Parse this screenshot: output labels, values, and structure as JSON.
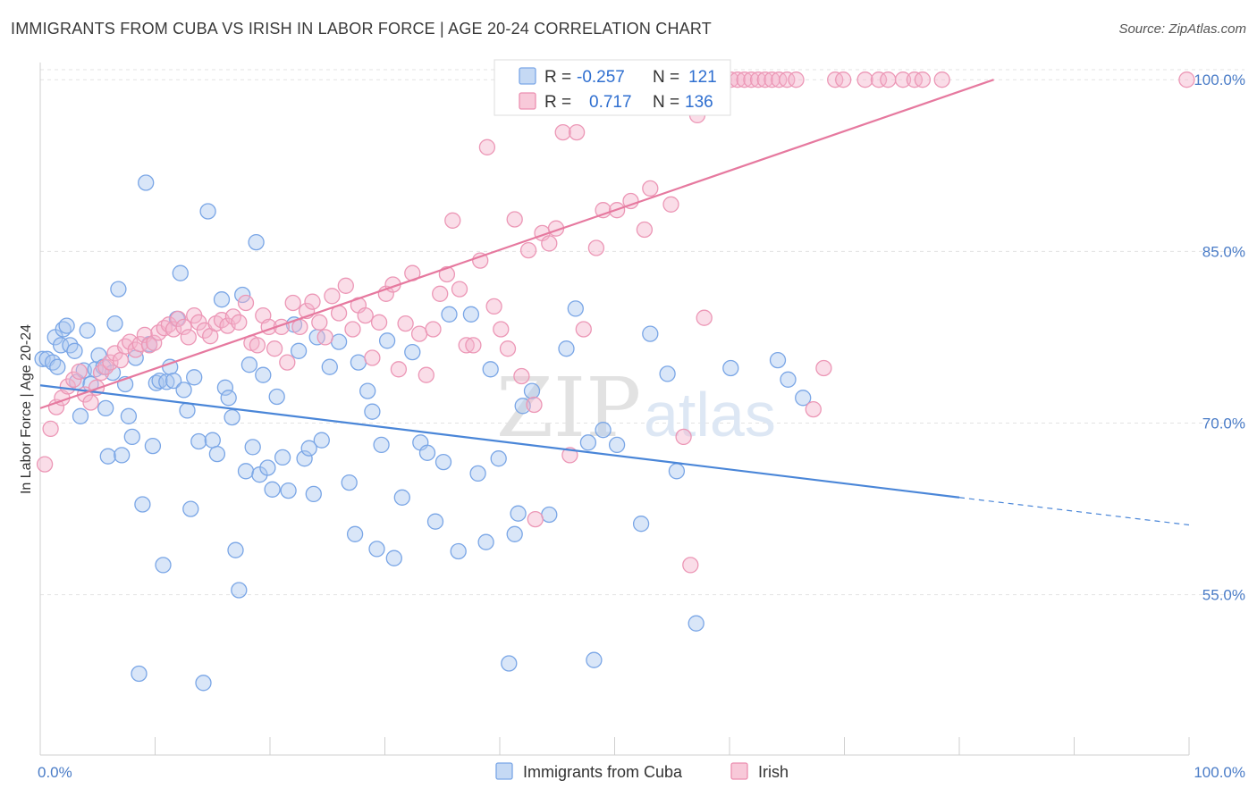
{
  "header": {
    "title": "IMMIGRANTS FROM CUBA VS IRISH IN LABOR FORCE | AGE 20-24 CORRELATION CHART",
    "source": "Source: ZipAtlas.com"
  },
  "watermark": {
    "zip": "ZIP",
    "atlas": "atlas"
  },
  "legend": {
    "r_label": "R =",
    "n_label": "N =",
    "items": [
      {
        "name": "Immigrants from Cuba",
        "r": "-0.257",
        "n": "121",
        "color": "#7aa6e6",
        "fill": "#c5d9f4"
      },
      {
        "name": "Irish",
        "r": "0.717",
        "n": "136",
        "color": "#ec8fb0",
        "fill": "#f8c9d9"
      }
    ]
  },
  "chart_data": {
    "type": "scatter",
    "title": "IMMIGRANTS FROM CUBA VS IRISH IN LABOR FORCE | AGE 20-24 CORRELATION CHART",
    "xlabel": "",
    "ylabel": "In Labor Force | Age 20-24",
    "xlim": [
      0,
      100
    ],
    "ylim": [
      41,
      101.5
    ],
    "x_tick_labels": [
      "0.0%",
      "100.0%"
    ],
    "y_ticks": [
      55,
      70,
      85,
      100
    ],
    "y_tick_labels": [
      "55.0%",
      "70.0%",
      "85.0%",
      "100.0%"
    ],
    "grid": true,
    "legend_position": "top-center",
    "series": [
      {
        "name": "Immigrants from Cuba",
        "color": "#4a86d8",
        "trend": {
          "x": [
            0,
            80
          ],
          "y": [
            73.3,
            63.5
          ],
          "dashed_to": [
            100,
            61.1
          ]
        },
        "points": [
          [
            0.2,
            75.6
          ],
          [
            0.6,
            75.6
          ],
          [
            1.1,
            75.3
          ],
          [
            1.3,
            77.5
          ],
          [
            1.5,
            74.9
          ],
          [
            1.8,
            76.8
          ],
          [
            2,
            78.2
          ],
          [
            2.3,
            78.5
          ],
          [
            2.6,
            76.8
          ],
          [
            3,
            76.3
          ],
          [
            3.2,
            73.6
          ],
          [
            3.5,
            70.6
          ],
          [
            3.8,
            74.6
          ],
          [
            4.1,
            78.1
          ],
          [
            4.4,
            73.4
          ],
          [
            4.8,
            74.7
          ],
          [
            5.1,
            75.9
          ],
          [
            5.5,
            74.9
          ],
          [
            5.7,
            71.3
          ],
          [
            5.9,
            67.1
          ],
          [
            6.3,
            74.4
          ],
          [
            6.5,
            78.7
          ],
          [
            6.8,
            81.7
          ],
          [
            7.1,
            67.2
          ],
          [
            7.4,
            73.4
          ],
          [
            7.7,
            70.6
          ],
          [
            8,
            68.8
          ],
          [
            8.3,
            75.7
          ],
          [
            8.6,
            48.1
          ],
          [
            8.9,
            62.9
          ],
          [
            9.2,
            91
          ],
          [
            9.5,
            76.9
          ],
          [
            9.8,
            68
          ],
          [
            10.1,
            73.5
          ],
          [
            10.4,
            73.7
          ],
          [
            10.7,
            57.6
          ],
          [
            11,
            73.6
          ],
          [
            11.3,
            74.9
          ],
          [
            11.6,
            73.7
          ],
          [
            11.9,
            79.1
          ],
          [
            12.2,
            83.1
          ],
          [
            12.5,
            72.9
          ],
          [
            12.8,
            71.1
          ],
          [
            13.1,
            62.5
          ],
          [
            13.4,
            74
          ],
          [
            13.8,
            68.4
          ],
          [
            14.2,
            47.3
          ],
          [
            14.6,
            88.5
          ],
          [
            15,
            68.5
          ],
          [
            15.4,
            67.3
          ],
          [
            15.8,
            80.8
          ],
          [
            16.1,
            73.1
          ],
          [
            16.4,
            72.2
          ],
          [
            16.7,
            70.5
          ],
          [
            17,
            58.9
          ],
          [
            17.3,
            55.4
          ],
          [
            17.6,
            81.2
          ],
          [
            17.9,
            65.8
          ],
          [
            18.2,
            75.1
          ],
          [
            18.5,
            67.9
          ],
          [
            18.8,
            85.8
          ],
          [
            19.1,
            65.5
          ],
          [
            19.4,
            74.2
          ],
          [
            19.8,
            66.1
          ],
          [
            20.2,
            64.2
          ],
          [
            20.6,
            72.3
          ],
          [
            21.1,
            67
          ],
          [
            21.6,
            64.1
          ],
          [
            22.1,
            78.6
          ],
          [
            22.5,
            76.3
          ],
          [
            23,
            66.9
          ],
          [
            23.4,
            67.8
          ],
          [
            23.8,
            63.8
          ],
          [
            24.1,
            77.5
          ],
          [
            24.5,
            68.5
          ],
          [
            25.2,
            74.9
          ],
          [
            26,
            77.1
          ],
          [
            26.9,
            64.8
          ],
          [
            27.4,
            60.3
          ],
          [
            27.7,
            75.3
          ],
          [
            28.5,
            72.8
          ],
          [
            28.9,
            71
          ],
          [
            29.3,
            59
          ],
          [
            29.7,
            68.1
          ],
          [
            30.2,
            77.2
          ],
          [
            30.8,
            58.2
          ],
          [
            31.5,
            63.5
          ],
          [
            32.4,
            76.2
          ],
          [
            33.1,
            68.3
          ],
          [
            33.7,
            67.4
          ],
          [
            34.4,
            61.4
          ],
          [
            35.1,
            66.6
          ],
          [
            35.6,
            79.5
          ],
          [
            36.4,
            58.8
          ],
          [
            37.5,
            79.5
          ],
          [
            38.1,
            65.6
          ],
          [
            38.8,
            59.6
          ],
          [
            39.2,
            74.7
          ],
          [
            39.9,
            66.9
          ],
          [
            40.8,
            49
          ],
          [
            41.3,
            60.3
          ],
          [
            41.6,
            62.1
          ],
          [
            42,
            71.5
          ],
          [
            42.8,
            72.8
          ],
          [
            44.3,
            62
          ],
          [
            45.8,
            76.5
          ],
          [
            46.6,
            80
          ],
          [
            47.7,
            68.3
          ],
          [
            48.2,
            49.3
          ],
          [
            49,
            69.4
          ],
          [
            50.2,
            68.1
          ],
          [
            52.3,
            61.2
          ],
          [
            53.1,
            77.8
          ],
          [
            54.6,
            74.3
          ],
          [
            55.4,
            65.8
          ],
          [
            57.1,
            52.5
          ],
          [
            60.1,
            74.8
          ],
          [
            64.2,
            75.5
          ],
          [
            65.1,
            73.8
          ],
          [
            66.4,
            72.2
          ]
        ]
      },
      {
        "name": "Irish",
        "color": "#e6799f",
        "trend": {
          "x": [
            0,
            83
          ],
          "y": [
            71.3,
            100
          ]
        },
        "points": [
          [
            0.4,
            66.4
          ],
          [
            0.9,
            69.5
          ],
          [
            1.4,
            71.4
          ],
          [
            1.9,
            72.2
          ],
          [
            2.4,
            73.2
          ],
          [
            2.9,
            73.8
          ],
          [
            3.4,
            74.5
          ],
          [
            3.9,
            72.5
          ],
          [
            4.4,
            71.8
          ],
          [
            4.9,
            73.1
          ],
          [
            5.3,
            74.4
          ],
          [
            5.7,
            74.9
          ],
          [
            6.1,
            75.3
          ],
          [
            6.5,
            76.1
          ],
          [
            7,
            75.5
          ],
          [
            7.4,
            76.7
          ],
          [
            7.8,
            77.1
          ],
          [
            8.3,
            76.4
          ],
          [
            8.7,
            76.9
          ],
          [
            9.1,
            77.7
          ],
          [
            9.5,
            76.8
          ],
          [
            9.9,
            77
          ],
          [
            10.3,
            77.9
          ],
          [
            10.8,
            78.3
          ],
          [
            11.2,
            78.6
          ],
          [
            11.6,
            78.2
          ],
          [
            12,
            79.1
          ],
          [
            12.5,
            78.4
          ],
          [
            12.9,
            77.5
          ],
          [
            13.4,
            79.4
          ],
          [
            13.8,
            78.8
          ],
          [
            14.3,
            78.1
          ],
          [
            14.8,
            77.6
          ],
          [
            15.3,
            78.7
          ],
          [
            15.8,
            79
          ],
          [
            16.3,
            78.5
          ],
          [
            16.8,
            79.3
          ],
          [
            17.3,
            78.8
          ],
          [
            17.9,
            80.5
          ],
          [
            18.4,
            77
          ],
          [
            18.9,
            76.8
          ],
          [
            19.4,
            79.4
          ],
          [
            19.9,
            78.4
          ],
          [
            20.4,
            76.5
          ],
          [
            21,
            78.4
          ],
          [
            21.5,
            75.3
          ],
          [
            22,
            80.5
          ],
          [
            22.6,
            78.4
          ],
          [
            23.2,
            79.8
          ],
          [
            23.7,
            80.6
          ],
          [
            24.3,
            78.8
          ],
          [
            24.8,
            77.5
          ],
          [
            25.4,
            81.1
          ],
          [
            26,
            79.6
          ],
          [
            26.6,
            82
          ],
          [
            27.2,
            78.2
          ],
          [
            27.7,
            80.3
          ],
          [
            28.3,
            79.4
          ],
          [
            28.9,
            75.7
          ],
          [
            29.5,
            78.8
          ],
          [
            30.1,
            81.3
          ],
          [
            30.7,
            82.1
          ],
          [
            31.2,
            74.7
          ],
          [
            31.8,
            78.7
          ],
          [
            32.4,
            83.1
          ],
          [
            33,
            77.8
          ],
          [
            33.6,
            74.2
          ],
          [
            34.2,
            78.2
          ],
          [
            34.8,
            81.3
          ],
          [
            35.4,
            83
          ],
          [
            35.9,
            87.7
          ],
          [
            36.5,
            81.7
          ],
          [
            37.1,
            76.8
          ],
          [
            37.7,
            76.8
          ],
          [
            38.3,
            84.2
          ],
          [
            38.9,
            94.1
          ],
          [
            39.5,
            80.2
          ],
          [
            40.1,
            78.2
          ],
          [
            40.7,
            76.5
          ],
          [
            41.3,
            87.8
          ],
          [
            41.9,
            74.1
          ],
          [
            42.5,
            85.1
          ],
          [
            43,
            71.6
          ],
          [
            43.1,
            61.6
          ],
          [
            43.7,
            86.6
          ],
          [
            44.3,
            85.7
          ],
          [
            44.9,
            87
          ],
          [
            45.5,
            95.4
          ],
          [
            46.1,
            67.2
          ],
          [
            46.7,
            95.4
          ],
          [
            47.3,
            78.2
          ],
          [
            47.8,
            100
          ],
          [
            48.4,
            85.3
          ],
          [
            49,
            88.6
          ],
          [
            49.6,
            100
          ],
          [
            50.2,
            88.6
          ],
          [
            50.8,
            100
          ],
          [
            51.4,
            89.4
          ],
          [
            52,
            100
          ],
          [
            52.6,
            86.9
          ],
          [
            53.1,
            90.5
          ],
          [
            53.7,
            100
          ],
          [
            54.3,
            100
          ],
          [
            54.9,
            89.1
          ],
          [
            55.4,
            100
          ],
          [
            56,
            68.8
          ],
          [
            56.6,
            57.6
          ],
          [
            57.2,
            96.9
          ],
          [
            57.8,
            79.2
          ],
          [
            58.3,
            100
          ],
          [
            58.9,
            100
          ],
          [
            59.5,
            100
          ],
          [
            60.1,
            100
          ],
          [
            60.7,
            100
          ],
          [
            61.3,
            100
          ],
          [
            61.9,
            100
          ],
          [
            62.5,
            100
          ],
          [
            63.1,
            100
          ],
          [
            63.7,
            100
          ],
          [
            64.3,
            100
          ],
          [
            65,
            100
          ],
          [
            65.8,
            100
          ],
          [
            67.3,
            71.2
          ],
          [
            68.2,
            74.8
          ],
          [
            69.2,
            100
          ],
          [
            69.9,
            100
          ],
          [
            71.8,
            100
          ],
          [
            73,
            100
          ],
          [
            73.8,
            100
          ],
          [
            75.1,
            100
          ],
          [
            76.1,
            100
          ],
          [
            76.8,
            100
          ],
          [
            78.5,
            100
          ],
          [
            99.8,
            100
          ]
        ]
      }
    ]
  }
}
